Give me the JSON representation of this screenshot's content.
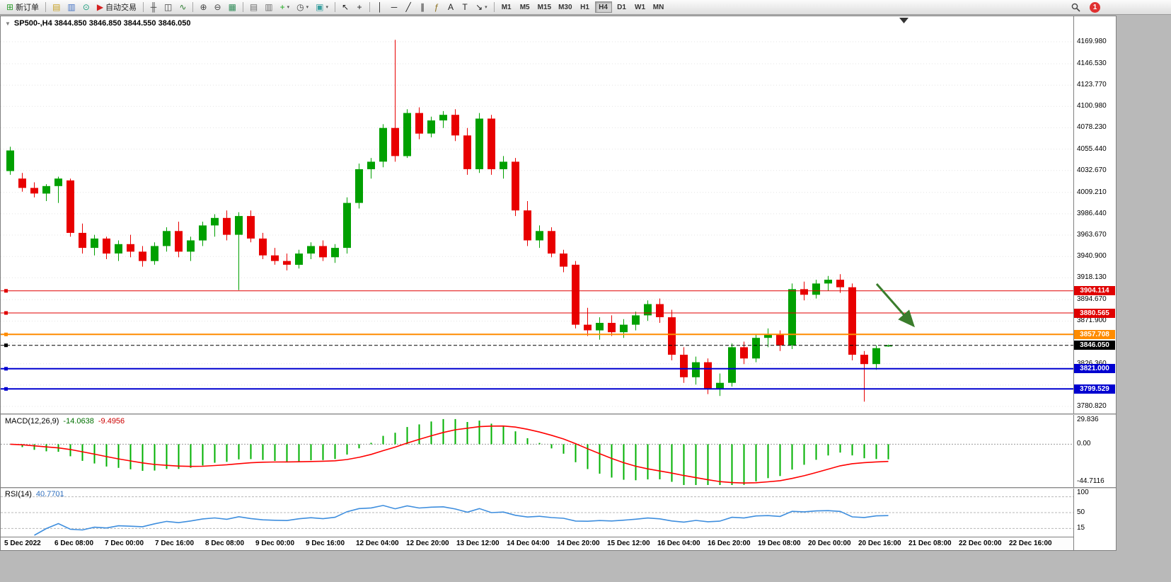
{
  "window": {
    "title": "SP500-,H4 3844.850 3846.850 3844.550 3846.050"
  },
  "toolbar": {
    "badge": "1",
    "groups": [
      {
        "items": [
          {
            "name": "new-order-button",
            "glyph": "⊞",
            "color": "#2f9e2f",
            "label": "新订单"
          }
        ]
      },
      {
        "items": [
          {
            "name": "new-chart-icon",
            "glyph": "▤",
            "color": "#c8a020"
          },
          {
            "name": "profiles-icon",
            "glyph": "▥",
            "color": "#4472c4"
          },
          {
            "name": "market-watch-icon",
            "glyph": "⊙",
            "color": "#20a080"
          },
          {
            "name": "autotrading-button",
            "glyph": "▶",
            "color": "#d42020",
            "label": "自动交易"
          }
        ]
      },
      {
        "items": [
          {
            "name": "ohlc-bars-icon",
            "glyph": "╫",
            "color": "#444444"
          },
          {
            "name": "candlestick-icon",
            "glyph": "◫",
            "color": "#444444"
          },
          {
            "name": "line-chart-icon",
            "glyph": "∿",
            "color": "#2e7d32"
          }
        ]
      },
      {
        "items": [
          {
            "name": "zoom-in-icon",
            "glyph": "⊕",
            "color": "#444444"
          },
          {
            "name": "zoom-out-icon",
            "glyph": "⊖",
            "color": "#444444"
          },
          {
            "name": "tile-windows-icon",
            "glyph": "▦",
            "color": "#2e8b57"
          }
        ]
      },
      {
        "items": [
          {
            "name": "indicator-window-icon",
            "glyph": "▤",
            "color": "#707070"
          },
          {
            "name": "chart-window-icon",
            "glyph": "▥",
            "color": "#707070"
          },
          {
            "name": "add-indicator-button",
            "glyph": "+",
            "color": "#18a818",
            "caret": true
          },
          {
            "name": "periods-button",
            "glyph": "◷",
            "color": "#444444",
            "caret": true
          },
          {
            "name": "template-button",
            "glyph": "▣",
            "color": "#3aa0a0",
            "caret": true
          }
        ]
      },
      {
        "items": [
          {
            "name": "cursor-icon",
            "glyph": "↖",
            "color": "#222222"
          },
          {
            "name": "crosshair-icon",
            "glyph": "+",
            "color": "#222222"
          }
        ]
      },
      {
        "items": [
          {
            "name": "vertical-line-icon",
            "glyph": "│",
            "color": "#222222"
          },
          {
            "name": "horizontal-line-icon",
            "glyph": "─",
            "color": "#222222"
          },
          {
            "name": "trendline-icon",
            "glyph": "╱",
            "color": "#222222"
          },
          {
            "name": "equidistant-channel-icon",
            "glyph": "∥",
            "color": "#222222"
          },
          {
            "name": "fibonacci-icon",
            "glyph": "ƒ",
            "color": "#8a6d1a"
          },
          {
            "name": "text-icon",
            "glyph": "A",
            "color": "#222222"
          },
          {
            "name": "text-label-icon",
            "glyph": "T",
            "color": "#222222"
          },
          {
            "name": "arrows-button",
            "glyph": "↘",
            "color": "#222222",
            "caret": true
          }
        ]
      }
    ],
    "timeframes": {
      "active": "H4",
      "items": [
        "M1",
        "M5",
        "M15",
        "M30",
        "H1",
        "H4",
        "D1",
        "W1",
        "MN"
      ]
    }
  },
  "chart": {
    "price_axis_labels": [
      "4169.980",
      "4146.530",
      "4123.770",
      "4100.980",
      "4078.230",
      "4055.440",
      "4032.670",
      "4009.210",
      "3986.440",
      "3963.670",
      "3940.900",
      "3918.130",
      "3894.670",
      "3871.900",
      "3826.360",
      "3780.820"
    ],
    "time_labels": [
      "5 Dec 2022",
      "6 Dec 08:00",
      "7 Dec 00:00",
      "7 Dec 16:00",
      "8 Dec 08:00",
      "9 Dec 00:00",
      "9 Dec 16:00",
      "12 Dec 04:00",
      "12 Dec 20:00",
      "13 Dec 12:00",
      "14 Dec 04:00",
      "14 Dec 20:00",
      "15 Dec 12:00",
      "16 Dec 04:00",
      "16 Dec 20:00",
      "19 Dec 08:00",
      "20 Dec 00:00",
      "20 Dec 16:00",
      "21 Dec 08:00",
      "22 Dec 00:00",
      "22 Dec 16:00"
    ],
    "levels": [
      {
        "label": "3904.114",
        "value": 3904.114,
        "color": "#e00000",
        "width": 1
      },
      {
        "label": "3880.565",
        "value": 3880.565,
        "color": "#e00000",
        "width": 1
      },
      {
        "label": "3857.708",
        "value": 3857.708,
        "color": "#ff8c00",
        "width": 2
      },
      {
        "label": "3821.000",
        "value": 3821.0,
        "color": "#0000d0",
        "width": 2
      },
      {
        "label": "3799.529",
        "value": 3799.529,
        "color": "#0000d0",
        "width": 2
      }
    ],
    "current_price": {
      "label": "3846.050",
      "value": 3846.05,
      "color": "#000000"
    },
    "annotation_arrow": {
      "color": "#3a7d2c"
    }
  },
  "chart_data": {
    "type": "candlestick",
    "title": "SP500-,H4",
    "timeframe": "H4",
    "up_color": "#00a000",
    "down_color": "#e80000",
    "price_range_visible": [
      3780.82,
      4169.98
    ],
    "candles": [
      [
        4032,
        4058,
        4028,
        4054
      ],
      [
        4024,
        4030,
        4010,
        4014
      ],
      [
        4014,
        4020,
        4004,
        4008
      ],
      [
        4008,
        4018,
        4000,
        4016
      ],
      [
        4016,
        4026,
        3998,
        4024
      ],
      [
        4022,
        4024,
        3962,
        3966
      ],
      [
        3966,
        3976,
        3944,
        3950
      ],
      [
        3950,
        3964,
        3942,
        3960
      ],
      [
        3960,
        3962,
        3938,
        3944
      ],
      [
        3944,
        3958,
        3936,
        3954
      ],
      [
        3954,
        3964,
        3940,
        3946
      ],
      [
        3946,
        3952,
        3930,
        3936
      ],
      [
        3936,
        3956,
        3932,
        3952
      ],
      [
        3952,
        3972,
        3946,
        3968
      ],
      [
        3968,
        3978,
        3940,
        3946
      ],
      [
        3946,
        3962,
        3936,
        3958
      ],
      [
        3958,
        3978,
        3952,
        3974
      ],
      [
        3974,
        3986,
        3962,
        3982
      ],
      [
        3982,
        3990,
        3958,
        3964
      ],
      [
        3964,
        3988,
        3905,
        3984
      ],
      [
        3984,
        3990,
        3956,
        3960
      ],
      [
        3960,
        3966,
        3938,
        3942
      ],
      [
        3942,
        3950,
        3932,
        3936
      ],
      [
        3936,
        3944,
        3926,
        3932
      ],
      [
        3932,
        3948,
        3928,
        3944
      ],
      [
        3944,
        3956,
        3938,
        3952
      ],
      [
        3952,
        3958,
        3936,
        3940
      ],
      [
        3940,
        3954,
        3934,
        3950
      ],
      [
        3950,
        4004,
        3944,
        3998
      ],
      [
        3998,
        4040,
        3992,
        4034
      ],
      [
        4034,
        4046,
        4024,
        4042
      ],
      [
        4042,
        4082,
        4036,
        4078
      ],
      [
        4078,
        4172,
        4042,
        4048
      ],
      [
        4048,
        4098,
        4046,
        4094
      ],
      [
        4094,
        4100,
        4066,
        4072
      ],
      [
        4072,
        4090,
        4068,
        4086
      ],
      [
        4086,
        4096,
        4078,
        4092
      ],
      [
        4092,
        4098,
        4064,
        4070
      ],
      [
        4070,
        4078,
        4028,
        4034
      ],
      [
        4034,
        4094,
        4030,
        4088
      ],
      [
        4088,
        4092,
        4028,
        4034
      ],
      [
        4034,
        4048,
        4024,
        4042
      ],
      [
        4042,
        4046,
        3984,
        3990
      ],
      [
        3990,
        4000,
        3952,
        3958
      ],
      [
        3958,
        3974,
        3950,
        3968
      ],
      [
        3968,
        3972,
        3940,
        3944
      ],
      [
        3944,
        3948,
        3924,
        3930
      ],
      [
        3932,
        3936,
        3864,
        3868
      ],
      [
        3868,
        3886,
        3856,
        3862
      ],
      [
        3862,
        3876,
        3852,
        3870
      ],
      [
        3870,
        3878,
        3856,
        3860
      ],
      [
        3860,
        3874,
        3854,
        3868
      ],
      [
        3868,
        3882,
        3862,
        3878
      ],
      [
        3878,
        3894,
        3872,
        3890
      ],
      [
        3890,
        3896,
        3870,
        3876
      ],
      [
        3876,
        3884,
        3830,
        3836
      ],
      [
        3836,
        3844,
        3806,
        3812
      ],
      [
        3812,
        3834,
        3804,
        3828
      ],
      [
        3828,
        3832,
        3794,
        3800
      ],
      [
        3800,
        3816,
        3792,
        3806
      ],
      [
        3806,
        3848,
        3802,
        3844
      ],
      [
        3844,
        3850,
        3826,
        3832
      ],
      [
        3832,
        3858,
        3828,
        3854
      ],
      [
        3854,
        3864,
        3844,
        3858
      ],
      [
        3858,
        3862,
        3840,
        3846
      ],
      [
        3846,
        3912,
        3842,
        3906
      ],
      [
        3906,
        3914,
        3894,
        3900
      ],
      [
        3900,
        3916,
        3896,
        3912
      ],
      [
        3912,
        3920,
        3904,
        3916
      ],
      [
        3916,
        3922,
        3902,
        3908
      ],
      [
        3908,
        3912,
        3830,
        3836
      ],
      [
        3836,
        3840,
        3786,
        3826
      ],
      [
        3826,
        3846,
        3820,
        3843
      ],
      [
        3844.85,
        3846.85,
        3844.55,
        3846.05
      ]
    ],
    "indicators": [
      {
        "type": "MACD",
        "label": "MACD(12,26,9)",
        "value_main": "-14.0638",
        "value_signal": "-9.4956",
        "params": [
          12,
          26,
          9
        ],
        "hist_color": "#00b000",
        "signal_color": "#ff0000",
        "axis_labels": [
          "29.836",
          "0.00",
          "-44.7116"
        ],
        "range": [
          -44.7116,
          29.836
        ]
      },
      {
        "type": "RSI",
        "label": "RSI(14)",
        "value_text": "40.7701",
        "period": 14,
        "line_color": "#3e8ede",
        "levels": [
          85,
          50,
          15
        ],
        "axis_labels": [
          "100",
          "50",
          "15"
        ]
      }
    ]
  }
}
